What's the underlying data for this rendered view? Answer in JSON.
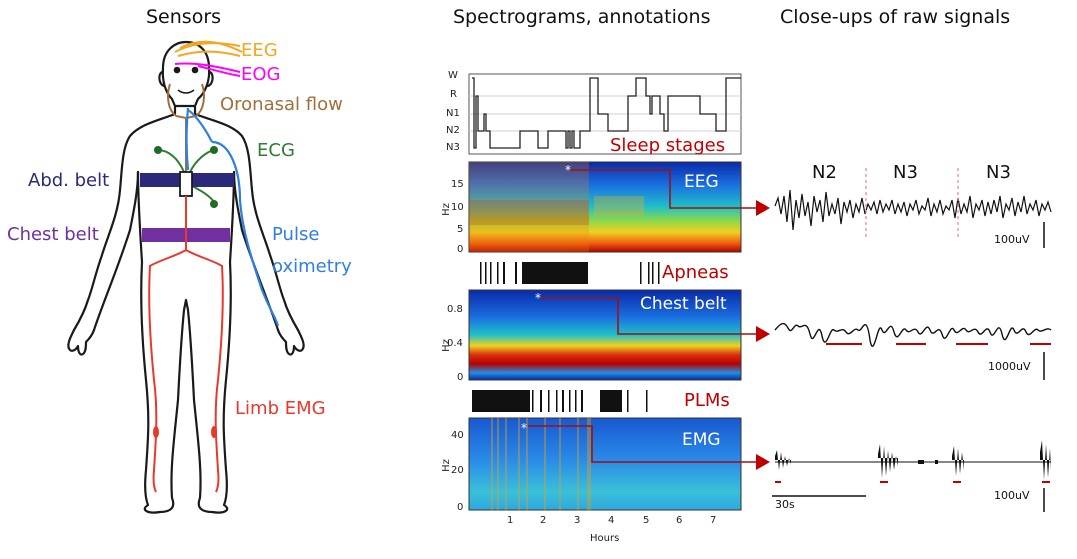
{
  "headings": {
    "sensors": "Sensors",
    "spectrograms": "Spectrograms, annotations",
    "closeups": "Close-ups of raw signals"
  },
  "sensors": {
    "eeg": "EEG",
    "eog": "EOG",
    "oronasal": "Oronasal flow",
    "ecg": "ECG",
    "abd_belt": "Abd. belt",
    "chest_belt": "Chest belt",
    "pulse": "Pulse",
    "oximetry": "oximetry",
    "limb_emg": "Limb EMG"
  },
  "colors": {
    "eeg": "#f5a623",
    "eog": "#ff00ff",
    "oronasal": "#a0703a",
    "ecg": "#2e7d32",
    "abd_belt": "#2b2a7a",
    "chest_belt": "#7030a0",
    "pulse": "#2f7fe0",
    "limb_emg": "#e8392b",
    "annotation_red": "#c00000"
  },
  "hypnogram": {
    "label": "Sleep stages",
    "stages": [
      "W",
      "R",
      "N1",
      "N2",
      "N3"
    ]
  },
  "spectrograms": [
    {
      "title": "EEG",
      "ylabel": "Hz",
      "yticks": [
        "15",
        "10",
        "5",
        "0"
      ]
    },
    {
      "title": "Chest belt",
      "ylabel": "Hz",
      "yticks": [
        "0.8",
        "0.4",
        "0"
      ]
    },
    {
      "title": "EMG",
      "ylabel": "Hz",
      "yticks": [
        "40",
        "20",
        "0"
      ]
    }
  ],
  "event_rows": {
    "apneas": "Apneas",
    "plms": "PLMs"
  },
  "time_axis": {
    "label": "Hours",
    "ticks": [
      "1",
      "2",
      "3",
      "4",
      "5",
      "6",
      "7"
    ]
  },
  "closeups": {
    "stage_labels": [
      "N2",
      "N3",
      "N3"
    ],
    "eeg_scale": "100uV",
    "chest_scale": "1000uV",
    "emg_scale": "100uV",
    "time_scale": "30s"
  }
}
